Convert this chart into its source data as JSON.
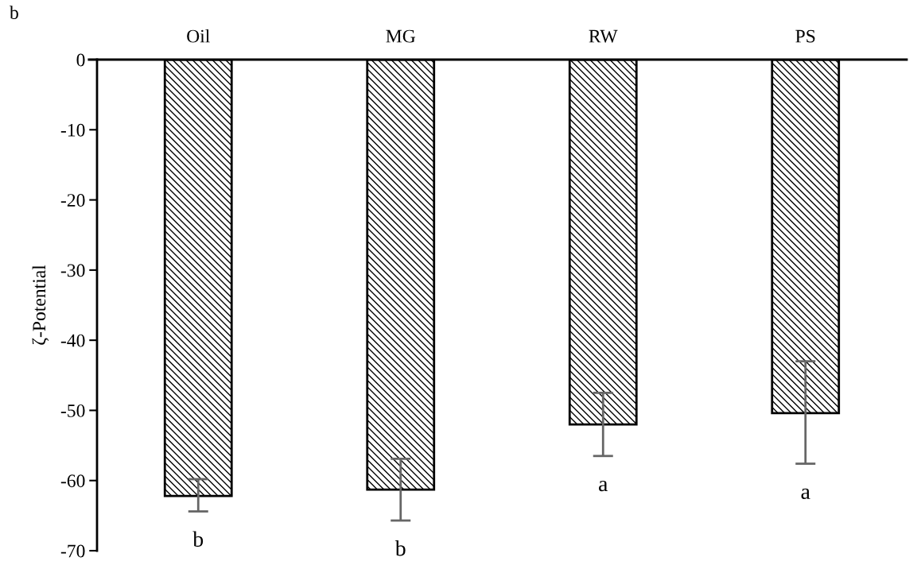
{
  "chart_data": {
    "type": "bar",
    "title": "b",
    "ylabel": "ζ-Potential",
    "categories": [
      "Oil",
      "MG",
      "RW",
      "PS"
    ],
    "values": [
      -62.2,
      -61.3,
      -52.0,
      -50.4
    ],
    "errors": [
      [
        -64.4,
        -59.8
      ],
      [
        -65.7,
        -56.9
      ],
      [
        -56.5,
        -47.5
      ],
      [
        -57.6,
        -43.0
      ]
    ],
    "color": "#000000",
    "ylim": [
      -70,
      0
    ],
    "yticks": [
      -70,
      -60,
      -50,
      -40,
      -30,
      -20,
      -10,
      0
    ],
    "grid": false,
    "annotations": [
      "b",
      "b",
      "a",
      "a"
    ]
  }
}
